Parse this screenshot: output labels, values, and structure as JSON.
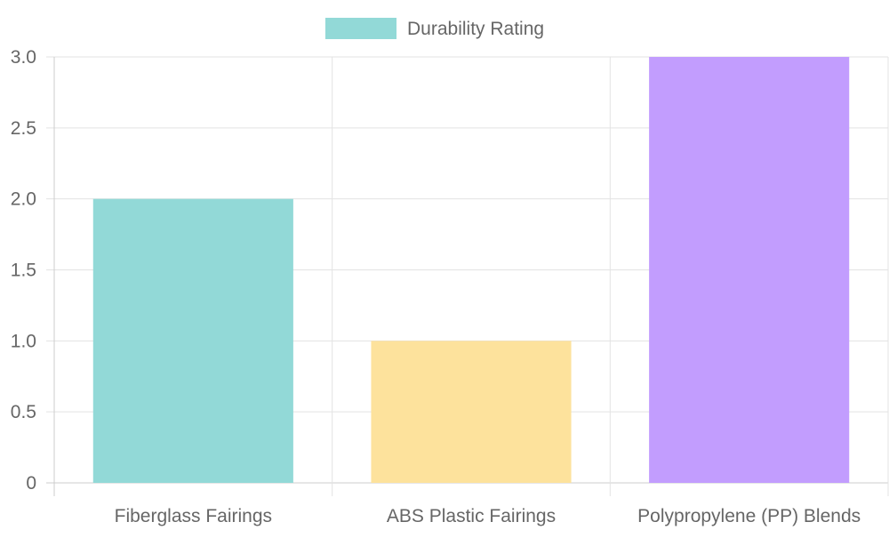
{
  "chart_data": {
    "type": "bar",
    "categories": [
      "Fiberglass Fairings",
      "ABS Plastic Fairings",
      "Polypropylene (PP) Blends"
    ],
    "series": [
      {
        "name": "Durability Rating",
        "values": [
          2,
          1,
          3
        ]
      }
    ],
    "ylim": [
      0,
      3
    ],
    "y_ticks": [
      "0",
      "0.5",
      "1.0",
      "1.5",
      "2.0",
      "2.5",
      "3.0"
    ],
    "grid": true,
    "legend_position": "top-center",
    "colors": {
      "bars": [
        "#92d9d7",
        "#fde29c",
        "#c29dfe"
      ],
      "legend_swatch": "#92d9d7",
      "grid": "#e3e3e3",
      "axis": "#cccccc",
      "text": "#666666"
    }
  }
}
